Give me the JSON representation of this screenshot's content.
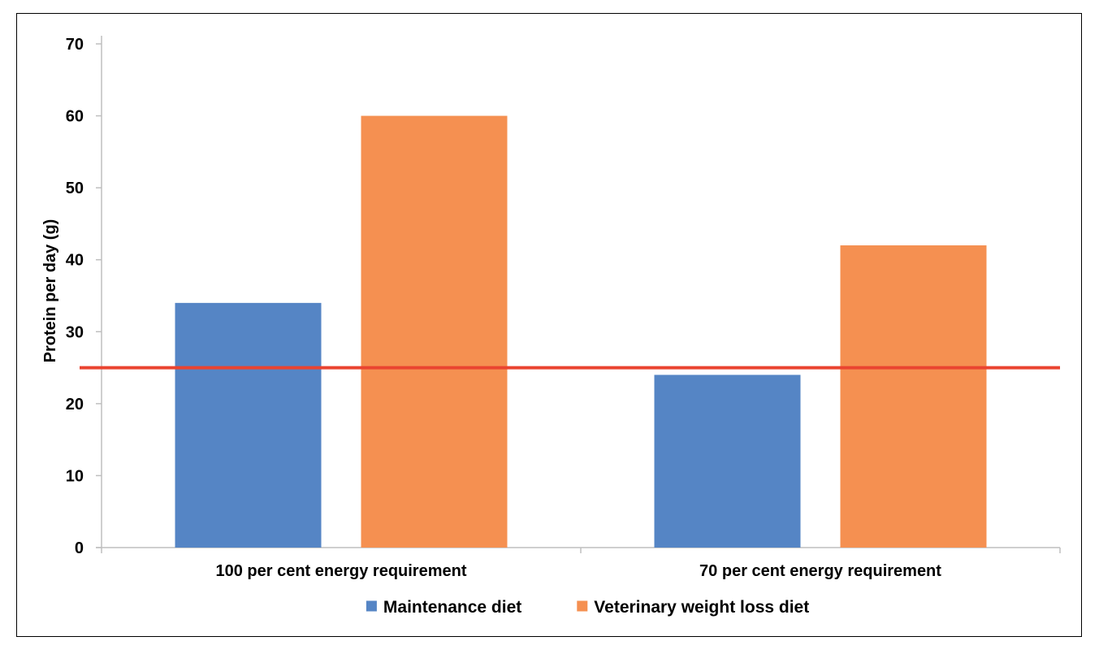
{
  "chart_data": {
    "type": "bar",
    "categories": [
      "100 per cent energy requirement",
      "70 per cent energy requirement"
    ],
    "series": [
      {
        "name": "Maintenance diet",
        "values": [
          34,
          24
        ],
        "color": "#5585C5"
      },
      {
        "name": "Veterinary weight loss diet",
        "values": [
          60,
          42
        ],
        "color": "#F59051"
      }
    ],
    "reference_line": {
      "value": 25,
      "color": "#EA4430"
    },
    "title": "",
    "xlabel": "",
    "ylabel": "Protein per day (g)",
    "ylim": [
      0,
      70
    ],
    "yticks": [
      0,
      10,
      20,
      30,
      40,
      50,
      60,
      70
    ],
    "grid": false,
    "legend_position": "bottom"
  }
}
